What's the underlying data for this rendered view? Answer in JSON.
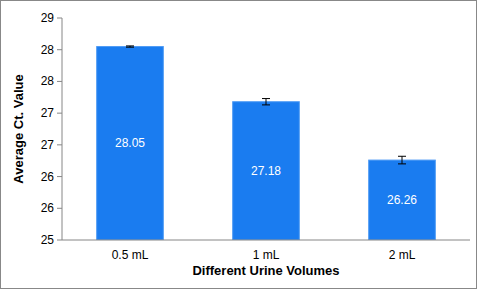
{
  "chart_data": {
    "type": "bar",
    "categories": [
      "0.5 mL",
      "1 mL",
      "2 mL"
    ],
    "values": [
      28.05,
      27.18,
      26.26
    ],
    "errors": [
      0.01,
      0.05,
      0.06
    ],
    "color": "#1a7cf0",
    "x_label": "Different Urine Volumes",
    "y_label": "Average Ct. Value",
    "ylim": [
      25,
      28.5
    ],
    "yticks": [
      25,
      {
        "value": 25.5,
        "label": "26"
      },
      26,
      {
        "value": 26.5,
        "label": "27"
      },
      27,
      {
        "value": 27.5,
        "label": "28"
      },
      28,
      {
        "value": 28.5,
        "label": "29"
      }
    ],
    "grid": false,
    "data_labels": true
  }
}
